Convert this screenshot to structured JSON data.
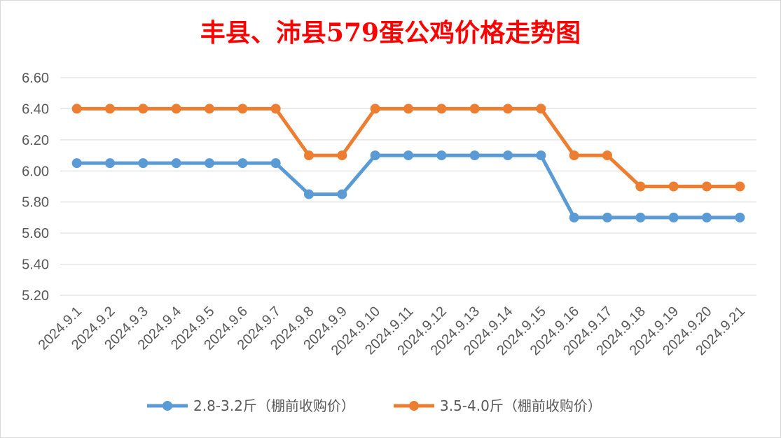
{
  "chart_data": {
    "type": "line",
    "title": "丰县、沛县579蛋公鸡价格走势图",
    "categories": [
      "2024.9.1",
      "2024.9.2",
      "2024.9.3",
      "2024.9.4",
      "2024.9.5",
      "2024.9.6",
      "2024.9.7",
      "2024.9.8",
      "2024.9.9",
      "2024.9.10",
      "2024.9.11",
      "2024.9.12",
      "2024.9.13",
      "2024.9.14",
      "2024.9.15",
      "2024.9.16",
      "2024.9.17",
      "2024.9.18",
      "2024.9.19",
      "2024.9.20",
      "2024.9.21"
    ],
    "y_ticks": [
      "5.20",
      "5.40",
      "5.60",
      "5.80",
      "6.00",
      "6.20",
      "6.40",
      "6.60"
    ],
    "ylim": [
      5.2,
      6.6
    ],
    "grid": true,
    "legend_position": "bottom",
    "series": [
      {
        "name": "2.8-3.2斤（棚前收购价）",
        "color": "#5b9bd5",
        "values": [
          6.05,
          6.05,
          6.05,
          6.05,
          6.05,
          6.05,
          6.05,
          5.85,
          5.85,
          6.1,
          6.1,
          6.1,
          6.1,
          6.1,
          6.1,
          5.7,
          5.7,
          5.7,
          5.7,
          5.7,
          5.7
        ]
      },
      {
        "name": "3.5-4.0斤（棚前收购价）",
        "color": "#ed7d31",
        "values": [
          6.4,
          6.4,
          6.4,
          6.4,
          6.4,
          6.4,
          6.4,
          6.1,
          6.1,
          6.4,
          6.4,
          6.4,
          6.4,
          6.4,
          6.4,
          6.1,
          6.1,
          5.9,
          5.9,
          5.9,
          5.9
        ]
      }
    ]
  }
}
